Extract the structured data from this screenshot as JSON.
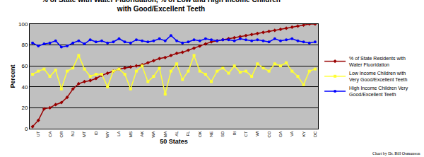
{
  "chart_data": {
    "type": "line",
    "title": "% of State with Water Fluoridation, % of Low and High Income Children\nwith Good/Excellent Teeth",
    "x_label": "50 States",
    "y_label": "Percent",
    "annotation": "Chart by Dr. Bill Osmunson",
    "categories": [
      null,
      "UT",
      null,
      "CA",
      null,
      "OR",
      null,
      "NJ",
      null,
      "MT",
      null,
      "ID",
      null,
      "WY",
      null,
      "LA",
      null,
      "MS",
      null,
      "AK",
      null,
      "WA",
      null,
      "MA",
      null,
      "AL",
      null,
      "FL",
      null,
      "OK",
      null,
      "NE",
      null,
      "SD",
      null,
      "RI",
      null,
      "CT",
      null,
      "WI",
      null,
      "CO",
      null,
      "GA",
      null,
      "VA",
      null,
      "KY",
      null,
      "DC"
    ],
    "series": [
      {
        "name": "% of State Residents with\nWater Fluoridation",
        "color": "#990000",
        "marker": "diamond",
        "values": [
          2,
          8,
          19,
          20,
          23,
          25,
          30,
          38,
          43,
          45,
          46,
          48,
          51,
          53,
          55,
          57,
          58,
          59,
          60,
          61,
          63,
          65,
          67,
          68,
          70,
          72,
          73,
          75,
          77,
          79,
          81,
          83,
          84,
          85,
          86,
          87,
          88,
          89,
          90,
          91,
          92,
          93,
          94,
          95,
          96,
          97,
          98,
          99,
          100,
          100
        ]
      },
      {
        "name": "Low Income Children with\nVery Good/Excellent Teeth",
        "color": "#FFFF33",
        "marker": "square",
        "values": [
          52,
          55,
          57,
          50,
          56,
          38,
          55,
          58,
          70,
          57,
          50,
          52,
          52,
          40,
          55,
          57,
          52,
          38,
          55,
          60,
          45,
          50,
          58,
          33,
          55,
          62,
          47,
          55,
          70,
          55,
          52,
          45,
          55,
          58,
          53,
          60,
          54,
          55,
          50,
          62,
          58,
          55,
          62,
          60,
          63,
          55,
          50,
          42,
          55,
          57
        ]
      },
      {
        "name": "High Income Children Very\nGood/Excellent Teeth",
        "color": "#0000FF",
        "marker": "circle",
        "values": [
          82,
          79,
          81,
          82,
          84,
          78,
          79,
          82,
          84,
          81,
          85,
          83,
          84,
          82,
          83,
          86,
          83,
          82,
          85,
          84,
          83,
          84,
          86,
          84,
          89,
          84,
          82,
          83,
          85,
          84,
          86,
          85,
          84,
          85,
          85,
          84,
          86,
          85,
          84,
          85,
          84,
          83,
          86,
          84,
          85,
          86,
          84,
          83,
          82,
          83
        ]
      }
    ],
    "ylim": [
      0,
      100
    ],
    "yticks": [
      0,
      20,
      40,
      60,
      80,
      100
    ],
    "grid": true,
    "legend": "right"
  }
}
